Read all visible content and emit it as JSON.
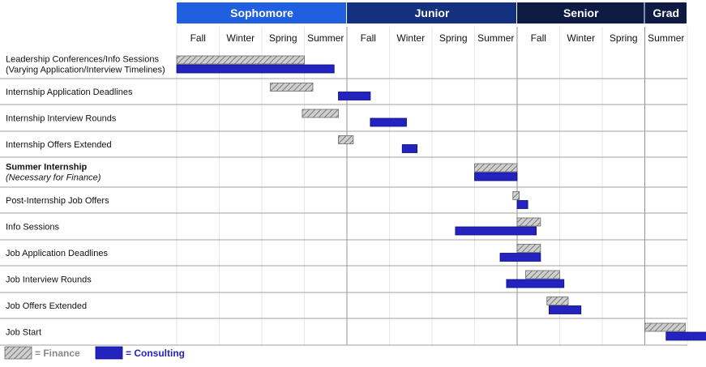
{
  "chart_data": {
    "type": "gantt",
    "years": [
      {
        "label": "Sophomore",
        "color": "#1f5fe0",
        "start": 0,
        "end": 4
      },
      {
        "label": "Junior",
        "color": "#15307e",
        "start": 4,
        "end": 8
      },
      {
        "label": "Senior",
        "color": "#0c1a44",
        "start": 8,
        "end": 11
      },
      {
        "label": "Grad",
        "color": "#0c1a44",
        "start": 11,
        "end": 12
      }
    ],
    "seasons": [
      "Fall",
      "Winter",
      "Spring",
      "Summer",
      "Fall",
      "Winter",
      "Spring",
      "Summer",
      "Fall",
      "Winter",
      "Spring",
      "Summer"
    ],
    "rows": [
      {
        "label": "Leadership Conferences/Info Sessions",
        "sublabel": "(Varying Application/Interview Timelines)",
        "bold": false,
        "italic_sub": false,
        "finance": [
          0.0,
          3.0
        ],
        "consulting": [
          0.0,
          3.7
        ]
      },
      {
        "label": "Internship Application Deadlines",
        "finance": [
          2.2,
          3.2
        ],
        "consulting": [
          3.8,
          4.55
        ]
      },
      {
        "label": "Internship Interview Rounds",
        "finance": [
          2.95,
          3.8
        ],
        "consulting": [
          4.55,
          5.4
        ]
      },
      {
        "label": "Internship Offers Extended",
        "finance": [
          3.8,
          4.15
        ],
        "consulting": [
          5.3,
          5.65
        ]
      },
      {
        "label": "Summer Internship",
        "sublabel": "(Necessary for Finance)",
        "bold": true,
        "italic_sub": true,
        "finance": [
          7.0,
          8.0
        ],
        "consulting": [
          7.0,
          8.0
        ]
      },
      {
        "label": "Post-Internship Job Offers",
        "finance": [
          7.9,
          8.05
        ],
        "consulting": [
          8.0,
          8.25
        ]
      },
      {
        "label": "Info Sessions",
        "finance": [
          8.0,
          8.55
        ],
        "consulting": [
          6.55,
          8.45
        ]
      },
      {
        "label": "Job Application Deadlines",
        "finance": [
          8.0,
          8.55
        ],
        "consulting": [
          7.6,
          8.55
        ]
      },
      {
        "label": "Job Interview Rounds",
        "finance": [
          8.2,
          9.0
        ],
        "consulting": [
          7.75,
          9.1
        ]
      },
      {
        "label": "Job Offers Extended",
        "finance": [
          8.7,
          9.2
        ],
        "consulting": [
          8.75,
          9.5
        ]
      },
      {
        "label": "Job Start",
        "finance": [
          11.0,
          11.95
        ],
        "consulting": [
          11.5,
          12.45
        ]
      }
    ],
    "legend": [
      {
        "key": "finance",
        "label": "= Finance",
        "color": "#888888"
      },
      {
        "key": "consulting",
        "label": "= Consulting",
        "color": "#2323c0"
      }
    ],
    "colors": {
      "consulting_fill": "#2323c0",
      "consulting_stroke": "#0d0d7a",
      "finance_fill": "#c8c8c8",
      "finance_stroke": "#6a6a6a",
      "grid": "#e6e6e6",
      "row_divider": "#a0a0a0",
      "year_divider": "#909090"
    }
  }
}
